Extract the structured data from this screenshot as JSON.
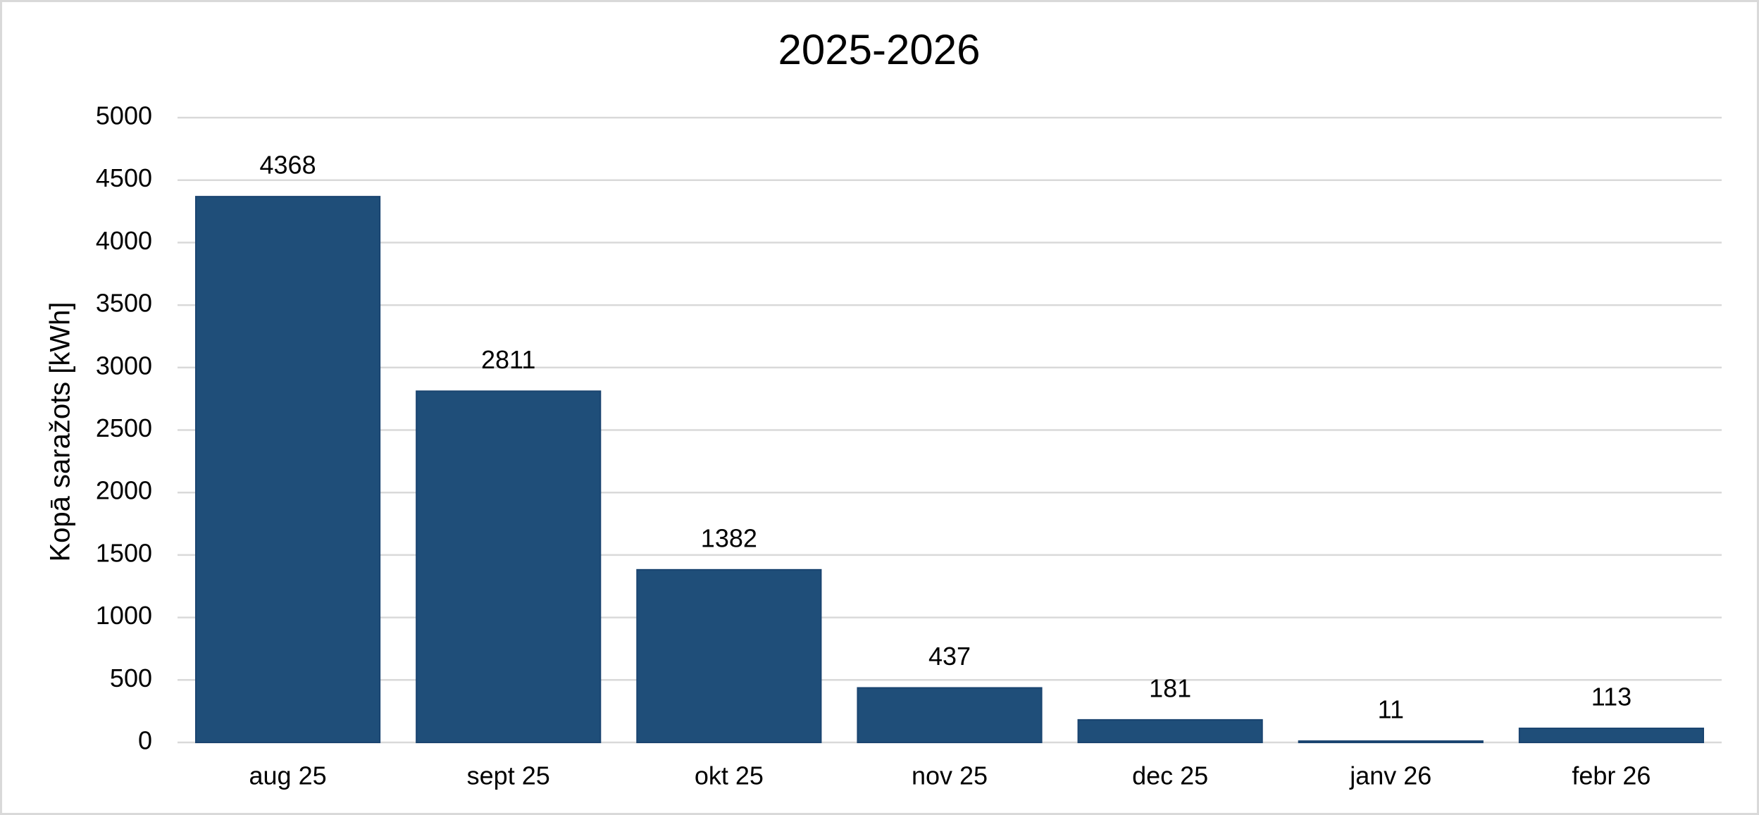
{
  "chart_data": {
    "type": "bar",
    "title": "2025-2026",
    "y_label": "Kopā saražots [kWh]",
    "categories": [
      "aug 25",
      "sept 25",
      "okt 25",
      "nov 25",
      "dec 25",
      "janv 26",
      "febr 26"
    ],
    "values": [
      4368,
      2811,
      1382,
      437,
      181,
      11,
      113
    ],
    "color": "#1f4e79",
    "ylim": [
      0,
      5000
    ],
    "yticks": [
      0,
      500,
      1000,
      1500,
      2000,
      2500,
      3000,
      3500,
      4000,
      4500,
      5000
    ],
    "grid": true,
    "data_labels": true
  }
}
